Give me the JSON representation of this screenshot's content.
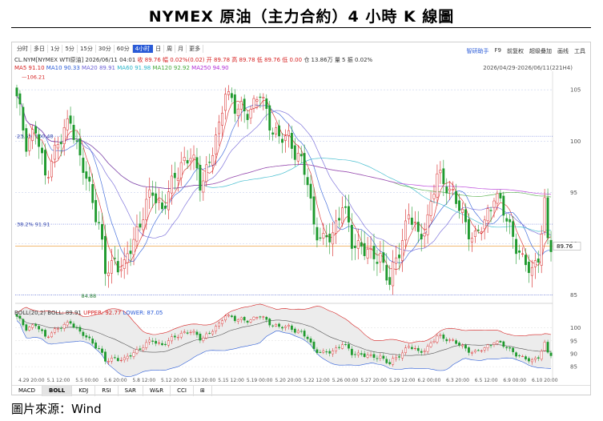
{
  "title": "NYMEX 原油（主力合約）4 小時 K 線圖",
  "source": "圖片來源：Wind",
  "timeframes": [
    "分时",
    "多日",
    "1分",
    "5分",
    "15分",
    "30分",
    "60分",
    "4小时",
    "日",
    "周",
    "月",
    "更多"
  ],
  "active_timeframe": "4小时",
  "tools": [
    "智研助手",
    "F9",
    "前复权",
    "超级叠加",
    "画线",
    "工具"
  ],
  "quote": {
    "symbol": "CL.NYM[NYMEX WTI原油]",
    "datetime": "2026/06/11 04:01",
    "close": "收 89.76",
    "change": "幅 0.02%(0.02)",
    "open": "开 89.78",
    "high": "高 89.78",
    "low": "低 89.76",
    "flat": "低 0.00",
    "turnover": "仓 13.86万",
    "volume": "量 5",
    "amp": "振 0.02%"
  },
  "ma_legend": [
    {
      "label": "MA5 91.10",
      "color": "#d61f1f"
    },
    {
      "label": "MA10 90.33",
      "color": "#2a5bd7"
    },
    {
      "label": "MA20 89.91",
      "color": "#6c5fd6"
    },
    {
      "label": "MA60 91.98",
      "color": "#28b4c8"
    },
    {
      "label": "MA120 92.92",
      "color": "#46a83a"
    },
    {
      "label": "MA250 94.90",
      "color": "#b12bd6"
    }
  ],
  "range_text": "2026/04/29-2026/06/11(221H4)",
  "boll_header": {
    "prefix": "BOLL(20,2) BOLL: 89.91",
    "upper": "UPPER: 92.77",
    "lower": "LOWER: 87.05"
  },
  "bottom_tabs": [
    "MACD",
    "BOLL",
    "KDJ",
    "RSI",
    "SAR",
    "W&R",
    "CCI",
    "⊞"
  ],
  "active_bottom_tab": "BOLL",
  "chart_data": {
    "type": "candlestick",
    "y_axis_main": {
      "ticks": [
        85,
        90,
        95,
        100,
        105
      ],
      "range": [
        84.5,
        106.5
      ]
    },
    "y_axis_boll": {
      "ticks": [
        85,
        90,
        95,
        100
      ],
      "range": [
        83.5,
        104.5
      ]
    },
    "x_tick_labels": [
      "4.29 20:00",
      "5.1 12:00",
      "5.5 00:00",
      "5.6 20:00",
      "5.8 12:00",
      "5.12 20:00",
      "5.13 20:00",
      "5.15 12:00",
      "5.19 00:00",
      "5.20 20:00",
      "5.22 12:00",
      "5.26 00:00",
      "5.27 20:00",
      "5.29 12:00",
      "6.2 00:00",
      "6.3 20:00",
      "6.5 12:00",
      "6.9 00:00",
      "6.10 20:00"
    ],
    "annotations": {
      "high_mark": "106.21",
      "low_mark": "84.88",
      "last_price": "89.76",
      "fib_23_6": "23.6%  100.48",
      "fib_38_2": "38.2%  91.91"
    },
    "anchors": [
      [
        0,
        104
      ],
      [
        3,
        100
      ],
      [
        6,
        101
      ],
      [
        9,
        96.5
      ],
      [
        11,
        98.5
      ],
      [
        14,
        100
      ],
      [
        17,
        102.5
      ],
      [
        20,
        98
      ],
      [
        23,
        95.5
      ],
      [
        26,
        92
      ],
      [
        28,
        87
      ],
      [
        31,
        88.5
      ],
      [
        34,
        87.5
      ],
      [
        37,
        90.5
      ],
      [
        40,
        93
      ],
      [
        43,
        95
      ],
      [
        46,
        93.5
      ],
      [
        49,
        95.5
      ],
      [
        52,
        98
      ],
      [
        55,
        98.5
      ],
      [
        58,
        96
      ],
      [
        61,
        98
      ],
      [
        64,
        101
      ],
      [
        66,
        105.5
      ],
      [
        69,
        103
      ],
      [
        72,
        103
      ],
      [
        75,
        103.5
      ],
      [
        77,
        104.5
      ],
      [
        80,
        102
      ],
      [
        83,
        100
      ],
      [
        86,
        100.5
      ],
      [
        89,
        98.5
      ],
      [
        92,
        96
      ],
      [
        94,
        92
      ],
      [
        97,
        90
      ],
      [
        100,
        91
      ],
      [
        103,
        94
      ],
      [
        106,
        90
      ],
      [
        109,
        90
      ],
      [
        112,
        88.5
      ],
      [
        115,
        89
      ],
      [
        118,
        86
      ],
      [
        121,
        89.5
      ],
      [
        124,
        93
      ],
      [
        127,
        90.5
      ],
      [
        130,
        92.5
      ],
      [
        133,
        96.5
      ],
      [
        136,
        96
      ],
      [
        139,
        94
      ],
      [
        142,
        92
      ],
      [
        145,
        90.5
      ],
      [
        148,
        92
      ],
      [
        151,
        95
      ],
      [
        154,
        93
      ],
      [
        157,
        91
      ],
      [
        160,
        88
      ],
      [
        163,
        87.5
      ],
      [
        165,
        89
      ],
      [
        167,
        93.5
      ],
      [
        168,
        90
      ],
      [
        169,
        89.8
      ]
    ],
    "candle_count": 170
  }
}
